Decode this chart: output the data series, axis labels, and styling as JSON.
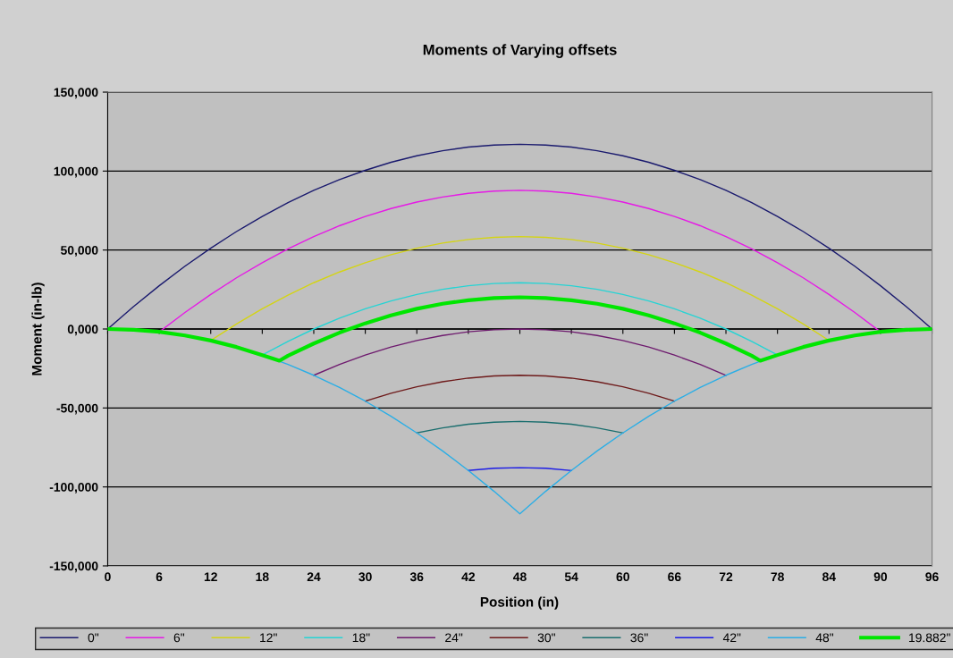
{
  "chart_data": {
    "type": "line",
    "title": "Moments of Varying offsets",
    "xlabel": "Position (in)",
    "ylabel": "Moment (in-lb)",
    "xlim": [
      0,
      96
    ],
    "xticks": [
      0,
      6,
      12,
      18,
      24,
      30,
      36,
      42,
      48,
      54,
      60,
      66,
      72,
      78,
      84,
      90,
      96
    ],
    "ylim": [
      -150000,
      150000
    ],
    "yticks": [
      {
        "value": -150000,
        "label": "-150,000"
      },
      {
        "value": -100000,
        "label": "-100,000"
      },
      {
        "value": -50000,
        "label": "-50,000"
      },
      {
        "value": 0,
        "label": "0,000"
      },
      {
        "value": 50000,
        "label": "50,000"
      },
      {
        "value": 100000,
        "label": "100,000"
      },
      {
        "value": 150000,
        "label": "150,000"
      }
    ],
    "grid": "y",
    "legend": "bottom",
    "marker": "none",
    "line_style": "solid",
    "series": [
      {
        "name": "0\"",
        "color": "#1a1a6e",
        "x": [
          0,
          3,
          6,
          9,
          12,
          15,
          18,
          21,
          24,
          27,
          30,
          33,
          36,
          39,
          42,
          45,
          48,
          51,
          54,
          57,
          60,
          63,
          66,
          69,
          72,
          75,
          78,
          81,
          84,
          87,
          90,
          93,
          96
        ],
        "values": [
          0,
          14200,
          27400,
          39800,
          51200,
          61700,
          71300,
          80000,
          87800,
          94600,
          100500,
          105600,
          109700,
          112900,
          115200,
          116500,
          117000,
          116500,
          115200,
          112900,
          109700,
          105600,
          100500,
          94600,
          87800,
          80000,
          71300,
          61700,
          51200,
          39800,
          27400,
          14200,
          0
        ]
      },
      {
        "name": "6\"",
        "color": "#e619e6",
        "x": [
          6,
          9,
          12,
          15,
          18,
          21,
          24,
          27,
          30,
          33,
          36,
          39,
          42,
          45,
          48,
          51,
          54,
          57,
          60,
          63,
          66,
          69,
          72,
          75,
          78,
          81,
          84,
          87,
          90
        ],
        "values": [
          -1800,
          10500,
          21900,
          32400,
          42000,
          50700,
          58500,
          65400,
          71300,
          76300,
          80400,
          83600,
          85900,
          87300,
          87800,
          87300,
          85900,
          83600,
          80400,
          76300,
          71300,
          65400,
          58500,
          50700,
          42000,
          32400,
          21900,
          10500,
          -1800
        ]
      },
      {
        "name": "12\"",
        "color": "#d4d414",
        "x": [
          12,
          15,
          18,
          21,
          24,
          27,
          30,
          33,
          36,
          39,
          42,
          45,
          48,
          51,
          54,
          57,
          60,
          63,
          66,
          69,
          72,
          75,
          78,
          81,
          84
        ],
        "values": [
          -7300,
          3200,
          12800,
          21500,
          29300,
          36100,
          42000,
          47100,
          51200,
          54400,
          56700,
          58000,
          58500,
          58000,
          56700,
          54400,
          51200,
          47100,
          42000,
          36100,
          29300,
          21500,
          12800,
          3200,
          -7300
        ]
      },
      {
        "name": "18\"",
        "color": "#26d4d4",
        "x": [
          18,
          21,
          24,
          27,
          30,
          33,
          36,
          39,
          42,
          45,
          48,
          51,
          54,
          57,
          60,
          63,
          66,
          69,
          72,
          75,
          78
        ],
        "values": [
          -16500,
          -7800,
          0,
          6900,
          12800,
          17800,
          21900,
          25100,
          27400,
          28800,
          29300,
          28800,
          27400,
          25100,
          21900,
          17800,
          12800,
          6900,
          0,
          -7800,
          -16500
        ]
      },
      {
        "name": "24\"",
        "color": "#6e1a6e",
        "x": [
          24,
          27,
          30,
          33,
          36,
          39,
          42,
          45,
          48,
          51,
          54,
          57,
          60,
          63,
          66,
          69,
          72
        ],
        "values": [
          -29300,
          -22400,
          -16500,
          -11400,
          -7300,
          -4100,
          -1800,
          -500,
          0,
          -500,
          -1800,
          -4100,
          -7300,
          -11400,
          -16500,
          -22400,
          -29300
        ]
      },
      {
        "name": "30\"",
        "color": "#6e1a1a",
        "x": [
          30,
          33,
          36,
          39,
          42,
          45,
          48,
          51,
          54,
          57,
          60,
          63,
          66
        ],
        "values": [
          -45700,
          -40700,
          -36600,
          -33400,
          -31100,
          -29700,
          -29300,
          -29700,
          -31100,
          -33400,
          -36600,
          -40700,
          -45700
        ]
      },
      {
        "name": "36\"",
        "color": "#1a6e6e",
        "x": [
          36,
          39,
          42,
          45,
          48,
          51,
          54,
          57,
          60
        ],
        "values": [
          -65800,
          -62600,
          -60300,
          -59000,
          -58500,
          -59000,
          -60300,
          -62600,
          -65800
        ]
      },
      {
        "name": "42\"",
        "color": "#1a1ae6",
        "x": [
          42,
          45,
          48,
          51,
          54
        ],
        "values": [
          -89600,
          -88200,
          -87800,
          -88200,
          -89600
        ]
      },
      {
        "name": "48\"",
        "color": "#2aaee6",
        "x": [
          18,
          21,
          24,
          27,
          30,
          33,
          36,
          39,
          42,
          45,
          48,
          51,
          54,
          57,
          60,
          63,
          66,
          69,
          72,
          75,
          78
        ],
        "values": [
          -16500,
          -22400,
          -29300,
          -37000,
          -45700,
          -55300,
          -65800,
          -77200,
          -89600,
          -102800,
          -117000,
          -102800,
          -89600,
          -77200,
          -65800,
          -55300,
          -45700,
          -37000,
          -29300,
          -22400,
          -16500
        ]
      },
      {
        "name": "19.882\"",
        "color": "#00e600",
        "x": [
          0,
          3,
          6,
          9,
          12,
          15,
          18,
          20,
          21,
          24,
          27,
          30,
          33,
          36,
          39,
          42,
          45,
          48,
          51,
          54,
          57,
          60,
          63,
          66,
          69,
          72,
          75,
          76,
          78,
          81,
          84,
          87,
          90,
          93,
          96
        ],
        "values": [
          0,
          -500,
          -1800,
          -4100,
          -7300,
          -11400,
          -16500,
          -20100,
          -16900,
          -9200,
          -2300,
          3600,
          8600,
          12800,
          16000,
          18200,
          19600,
          20100,
          19600,
          18200,
          16000,
          12800,
          8600,
          3600,
          -2300,
          -9200,
          -16900,
          -20100,
          -16500,
          -11400,
          -7300,
          -4100,
          -1800,
          -500,
          0
        ]
      }
    ]
  }
}
